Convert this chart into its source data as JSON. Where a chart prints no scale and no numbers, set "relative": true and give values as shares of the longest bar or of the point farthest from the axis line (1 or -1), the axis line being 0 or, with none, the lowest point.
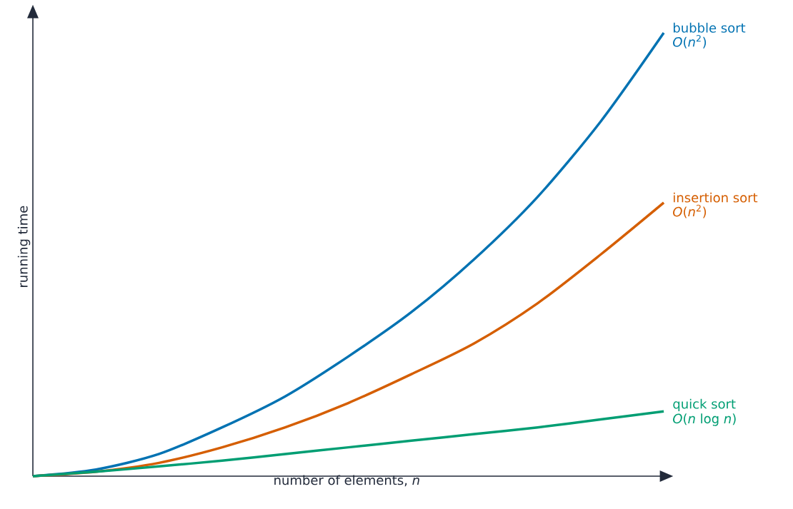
{
  "chart_data": {
    "type": "line",
    "relative": true,
    "xlabel": "number of elements, *n*",
    "ylabel": "running time",
    "categories": [
      null,
      null,
      null,
      null,
      null,
      null,
      null,
      null,
      null,
      null,
      null
    ],
    "series": [
      {
        "name": "bubble sort",
        "color": "#0072b2",
        "values": [
          0,
          0.015,
          0.05,
          0.11,
          0.18,
          0.27,
          0.37,
          0.49,
          0.63,
          0.8,
          1
        ]
      },
      {
        "name": "insertion sort",
        "color": "#d55e00",
        "values": [
          0,
          0.01,
          0.03,
          0.065,
          0.11,
          0.165,
          0.23,
          0.3,
          0.39,
          0.5,
          0.617
        ]
      },
      {
        "name": "quick sort",
        "color": "#009e73",
        "values": [
          0,
          0.01,
          0.022,
          0.035,
          0.05,
          0.065,
          0.08,
          0.095,
          0.11,
          0.128,
          0.146
        ]
      }
    ],
    "annotations": [
      "*O*(*n*$^{2}$)",
      "*O*(*n*$^{2}$)",
      "*O*(*n* log *n*)"
    ]
  }
}
